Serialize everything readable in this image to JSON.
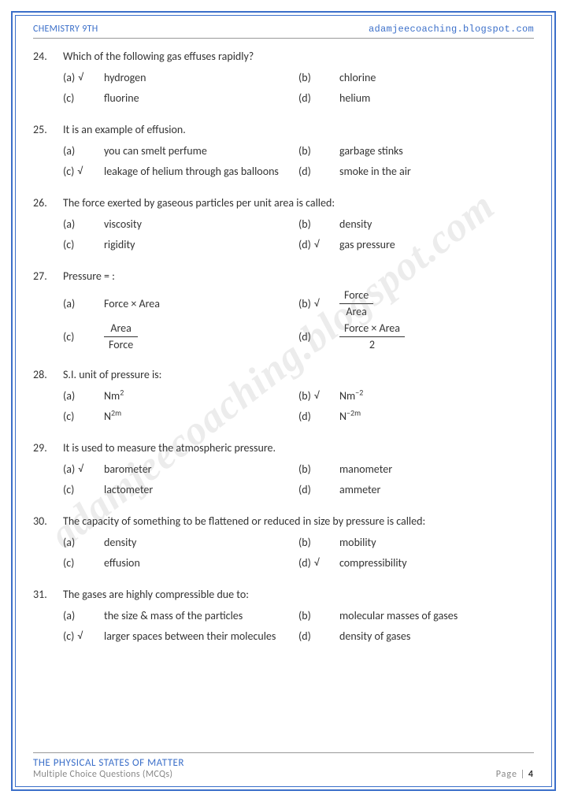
{
  "header": {
    "left": "CHEMISTRY 9TH",
    "right": "adamjeecoaching.blogspot.com"
  },
  "watermark": "adamjeecoaching.blogspot.com",
  "footer": {
    "title": "THE PHYSICAL STATES OF MATTER",
    "subtitle": "Multiple Choice Questions (MCQs)",
    "page_label": "Page |",
    "page_num": "4"
  },
  "checkmark": "√",
  "questions": [
    {
      "num": "24.",
      "text": "Which of the following gas effuses rapidly?",
      "rows": [
        [
          {
            "label": "(a)",
            "tick": true,
            "text": "hydrogen"
          },
          {
            "label": "(b)",
            "tick": false,
            "text": "chlorine"
          }
        ],
        [
          {
            "label": "(c)",
            "tick": false,
            "text": "fluorine"
          },
          {
            "label": "(d)",
            "tick": false,
            "text": "helium"
          }
        ]
      ]
    },
    {
      "num": "25.",
      "text": "It is an example of effusion.",
      "rows": [
        [
          {
            "label": "(a)",
            "tick": false,
            "text": "you can smelt perfume"
          },
          {
            "label": "(b)",
            "tick": false,
            "text": "garbage stinks"
          }
        ],
        [
          {
            "label": "(c)",
            "tick": true,
            "text": "leakage of helium through gas balloons"
          },
          {
            "label": "(d)",
            "tick": false,
            "text": "smoke in the air"
          }
        ]
      ]
    },
    {
      "num": "26.",
      "text": "The force exerted by gaseous particles per unit area is called:",
      "rows": [
        [
          {
            "label": "(a)",
            "tick": false,
            "text": "viscosity"
          },
          {
            "label": "(b)",
            "tick": false,
            "text": "density"
          }
        ],
        [
          {
            "label": "(c)",
            "tick": false,
            "text": "rigidity"
          },
          {
            "label": "(d)",
            "tick": true,
            "text": "gas pressure"
          }
        ]
      ]
    },
    {
      "num": "27.",
      "text": "Pressure = :",
      "tall": true,
      "rows": [
        [
          {
            "label": "(a)",
            "tick": false,
            "html": "Force × Area"
          },
          {
            "label": "(b)",
            "tick": true,
            "frac": {
              "num": "Force",
              "den": "Area"
            }
          }
        ],
        [
          {
            "label": "(c)",
            "tick": false,
            "frac": {
              "num": "Area",
              "den": "Force"
            }
          },
          {
            "label": "(d)",
            "tick": false,
            "frac": {
              "num": "Force × Area",
              "den": "2"
            }
          }
        ]
      ]
    },
    {
      "num": "28.",
      "text": "S.I. unit of pressure is:",
      "rows": [
        [
          {
            "label": "(a)",
            "tick": false,
            "html": "Nm<sup>2</sup>"
          },
          {
            "label": "(b)",
            "tick": true,
            "html": "Nm<sup>−2</sup>"
          }
        ],
        [
          {
            "label": "(c)",
            "tick": false,
            "html": "N<sup>2m</sup>"
          },
          {
            "label": "(d)",
            "tick": false,
            "html": "N<sup>−2m</sup>"
          }
        ]
      ]
    },
    {
      "num": "29.",
      "text": "It is used to measure the atmospheric pressure.",
      "rows": [
        [
          {
            "label": "(a)",
            "tick": true,
            "text": "barometer"
          },
          {
            "label": "(b)",
            "tick": false,
            "text": "manometer"
          }
        ],
        [
          {
            "label": "(c)",
            "tick": false,
            "text": "lactometer"
          },
          {
            "label": "(d)",
            "tick": false,
            "text": "ammeter"
          }
        ]
      ]
    },
    {
      "num": "30.",
      "text": "The capacity of something to be flattened or reduced in size by pressure is called:",
      "rows": [
        [
          {
            "label": "(a)",
            "tick": false,
            "text": "density"
          },
          {
            "label": "(b)",
            "tick": false,
            "text": "mobility"
          }
        ],
        [
          {
            "label": "(c)",
            "tick": false,
            "text": "effusion"
          },
          {
            "label": "(d)",
            "tick": true,
            "text": "compressibility"
          }
        ]
      ]
    },
    {
      "num": "31.",
      "text": "The gases are highly compressible due to:",
      "rows": [
        [
          {
            "label": "(a)",
            "tick": false,
            "text": "the size & mass of the particles"
          },
          {
            "label": "(b)",
            "tick": false,
            "text": "molecular masses of gases"
          }
        ],
        [
          {
            "label": "(c)",
            "tick": true,
            "text": "larger spaces between their molecules"
          },
          {
            "label": "(d)",
            "tick": false,
            "text": "density of gases"
          }
        ]
      ]
    }
  ]
}
